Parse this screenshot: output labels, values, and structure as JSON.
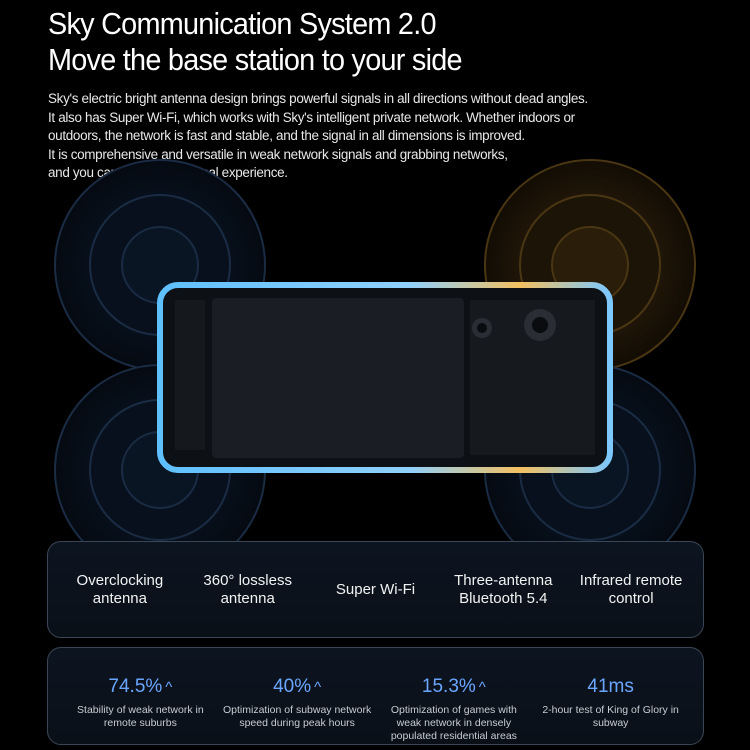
{
  "header": {
    "title": "Sky Communication System 2.0",
    "subtitle": "Move the base station to your side",
    "body": [
      "Sky's electric bright antenna design brings powerful signals in all directions without dead angles.",
      "It also has Super Wi-Fi, which works with Sky's intelligent private network. Whether indoors or",
      "outdoors, the network is fast and stable, and the signal in all dimensions is improved.",
      "It is comprehensive and versatile in weak network signals and grabbing networks,",
      "and you can enjoy a full signal experience."
    ]
  },
  "colors": {
    "accent": "#6aa6ff",
    "glow_blue": "#4fb4ff",
    "glow_yellow": "#f2b64a"
  },
  "features": [
    "Overclocking antenna",
    "360° lossless antenna",
    "Super Wi-Fi",
    "Three-antenna Bluetooth 5.4",
    "Infrared remote control"
  ],
  "stats": [
    {
      "value": "74.5%",
      "arrow": "^",
      "desc": "Stability of weak network in remote suburbs"
    },
    {
      "value": "40%",
      "arrow": "^",
      "desc": "Optimization of subway network speed during peak hours"
    },
    {
      "value": "15.3%",
      "arrow": "^",
      "desc": "Optimization of games with weak network in densely populated residential areas"
    },
    {
      "value": "41ms",
      "arrow": "",
      "desc": "2-hour test of King of Glory in subway"
    }
  ]
}
